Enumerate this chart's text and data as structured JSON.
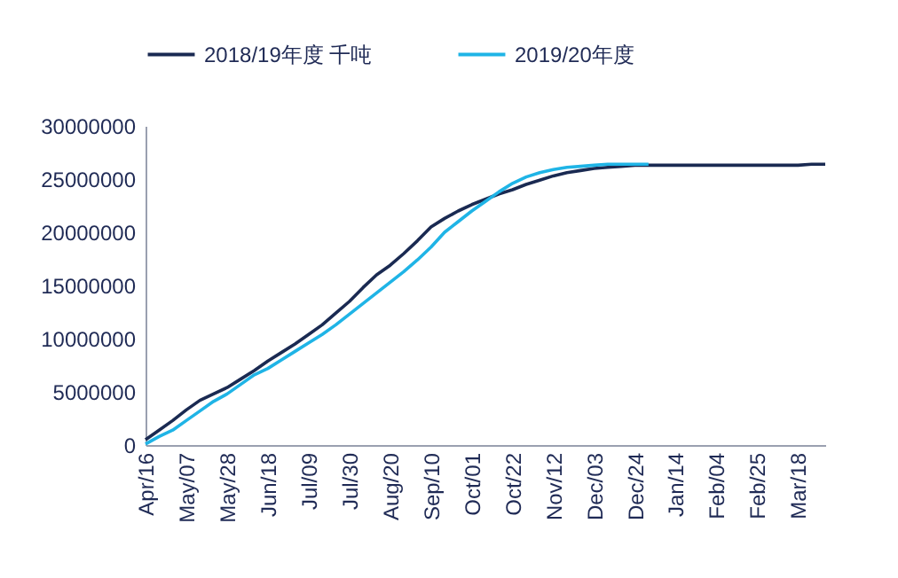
{
  "chart_data": {
    "type": "line",
    "categories": [
      "Apr/16",
      null,
      null,
      "May/07",
      null,
      null,
      "May/28",
      null,
      null,
      "Jun/18",
      null,
      null,
      "Jul/09",
      null,
      null,
      "Jul/30",
      null,
      null,
      "Aug/20",
      null,
      null,
      "Sep/10",
      null,
      null,
      "Oct/01",
      null,
      null,
      "Oct/22",
      null,
      null,
      "Nov/12",
      null,
      null,
      "Dec/03",
      null,
      null,
      "Dec/24",
      null,
      null,
      "Jan/14",
      null,
      null,
      "Feb/04",
      null,
      null,
      "Feb/25",
      null,
      null,
      "Mar/18",
      null,
      null
    ],
    "series": [
      {
        "name": "2018/19年度  千吨",
        "color": "#1a2a52",
        "values": [
          500000,
          1400000,
          2300000,
          3300000,
          4200000,
          4800000,
          5400000,
          6200000,
          7000000,
          7900000,
          8700000,
          9500000,
          10400000,
          11300000,
          12400000,
          13500000,
          14800000,
          16000000,
          16900000,
          18000000,
          19200000,
          20500000,
          21300000,
          22000000,
          22600000,
          23100000,
          23600000,
          24000000,
          24500000,
          24900000,
          25300000,
          25600000,
          25800000,
          26000000,
          26100000,
          26200000,
          26300000,
          26300000,
          26300000,
          26300000,
          26300000,
          26300000,
          26300000,
          26300000,
          26300000,
          26300000,
          26300000,
          26300000,
          26300000,
          26400000,
          26400000
        ]
      },
      {
        "name": "2019/20年度",
        "color": "#1fb4e6",
        "values": [
          100000,
          800000,
          1400000,
          2300000,
          3200000,
          4100000,
          4800000,
          5700000,
          6600000,
          7200000,
          8000000,
          8800000,
          9600000,
          10400000,
          11300000,
          12300000,
          13300000,
          14300000,
          15300000,
          16300000,
          17400000,
          18600000,
          20000000,
          21000000,
          22000000,
          22900000,
          23800000,
          24600000,
          25200000,
          25600000,
          25900000,
          26100000,
          26200000,
          26300000,
          26400000,
          26400000,
          26400000,
          26400000,
          null,
          null,
          null,
          null,
          null,
          null,
          null,
          null,
          null,
          null,
          null,
          null,
          null
        ]
      }
    ],
    "ylim": [
      0,
      30000000
    ],
    "yticks": [
      0,
      5000000,
      10000000,
      15000000,
      20000000,
      25000000,
      30000000
    ],
    "grid": false,
    "legend": "top"
  }
}
